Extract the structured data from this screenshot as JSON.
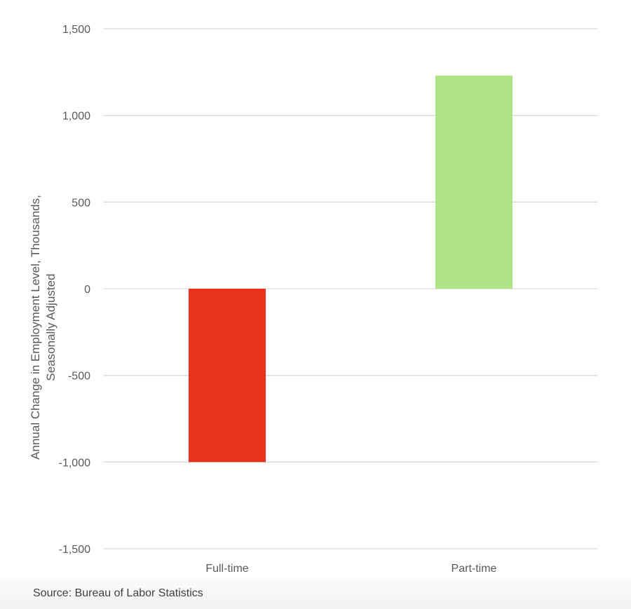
{
  "chart_data": {
    "type": "bar",
    "title": "",
    "xlabel": "",
    "ylabel": [
      "Annual Change in Employment Level, Thousands,",
      "Seasonally Adjusted"
    ],
    "categories": [
      "Full-time",
      "Part-time"
    ],
    "values": [
      -1000,
      1230
    ],
    "bar_colors": [
      "#e8321e",
      "#aee386"
    ],
    "ylim": [
      -1500,
      1500
    ],
    "yticks": [
      1500,
      1000,
      500,
      0,
      -500,
      -1000,
      -1500
    ],
    "ytick_labels": [
      "1,500",
      "1,000",
      "500",
      "0",
      "-500",
      "-1,000",
      "-1,500"
    ],
    "grid": true,
    "legend": "none"
  },
  "source": "Source: Bureau of Labor Statistics"
}
